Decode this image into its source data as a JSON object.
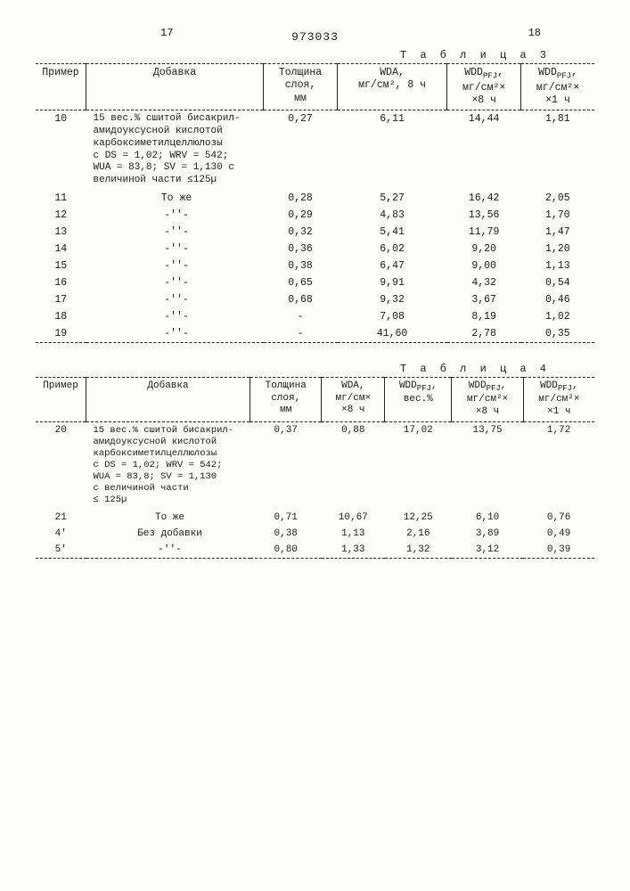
{
  "header": {
    "left_page": "17",
    "right_page": "18",
    "doc_number": "973033"
  },
  "table3": {
    "label": "Т а б л и ц а  3",
    "columns": {
      "c1": "Пример",
      "c2": "Добавка",
      "c3": "Толщина\nслоя,\nмм",
      "c4_a": "WDA,",
      "c4_b": "мг/см², 8 ч",
      "c5_a": "WDD",
      "c5_sub": "PFJ",
      "c5_b": "мг/см²×\n×8 ч",
      "c6_a": "WDD",
      "c6_sub": "PFJ",
      "c6_b": "мг/см²×\n×1 ч"
    },
    "additive_full": "15 вес.% сшитой бисакрил-\nамидоуксусной кислотой\nкарбоксиметилцеллюлозы\nс DS = 1,02; WRV = 542;\nWUA = 83,8; SV = 1,130 с\nвеличиной части ≤125µ",
    "same": "То же",
    "ditto": "-''-",
    "rows": [
      {
        "ex": "10",
        "add": "full",
        "t": "0,27",
        "wda": "6,11",
        "wdd8": "14,44",
        "wdd1": "1,81"
      },
      {
        "ex": "11",
        "add": "same",
        "t": "0,28",
        "wda": "5,27",
        "wdd8": "16,42",
        "wdd1": "2,05"
      },
      {
        "ex": "12",
        "add": "ditto",
        "t": "0,29",
        "wda": "4,83",
        "wdd8": "13,56",
        "wdd1": "1,70"
      },
      {
        "ex": "13",
        "add": "ditto",
        "t": "0,32",
        "wda": "5,41",
        "wdd8": "11,79",
        "wdd1": "1,47"
      },
      {
        "ex": "14",
        "add": "ditto",
        "t": "0,36",
        "wda": "6,02",
        "wdd8": "9,20",
        "wdd1": "1,20"
      },
      {
        "ex": "15",
        "add": "ditto",
        "t": "0,38",
        "wda": "6,47",
        "wdd8": "9,00",
        "wdd1": "1,13"
      },
      {
        "ex": "16",
        "add": "ditto",
        "t": "0,65",
        "wda": "9,91",
        "wdd8": "4,32",
        "wdd1": "0,54"
      },
      {
        "ex": "17",
        "add": "ditto",
        "t": "0,68",
        "wda": "9,32",
        "wdd8": "3,67",
        "wdd1": "0,46"
      },
      {
        "ex": "18",
        "add": "ditto",
        "t": "-",
        "wda": "7,08",
        "wdd8": "8,19",
        "wdd1": "1,02"
      },
      {
        "ex": "19",
        "add": "ditto",
        "t": "-",
        "wda": "41,60",
        "wdd8": "2,78",
        "wdd1": "0,35"
      }
    ]
  },
  "table4": {
    "label": "Т а б л и ц а  4",
    "columns": {
      "c1": "Пример",
      "c2": "Добавка",
      "c3": "Толщина\nслоя,\nмм",
      "c4_a": "WDA,",
      "c4_b": "мг/см×\n×8 ч",
      "c5_a": "WDD",
      "c5_sub": "PFJ",
      "c5_b": "вес.%",
      "c6_a": "WDD",
      "c6_sub": "PFJ",
      "c6_b": "мг/см²×\n×8 ч",
      "c7_a": "WDD",
      "c7_sub": "PFJ",
      "c7_b": "мг/см²×\n×1 ч"
    },
    "additive_full": "15 вес.% сшитой бисакрил-\nамидоуксусной кислотой\nкарбоксиметилцеллюлозы\nс DS = 1,02; WRV = 542;\nWUA = 83,8; SV = 1,130\nс величиной части\n≤ 125µ",
    "same": "То же",
    "none": "Без добавки",
    "ditto": "-''-",
    "rows": [
      {
        "ex": "20",
        "add": "full",
        "t": "0,37",
        "wda": "0,88",
        "wddp": "17,02",
        "wdd8": "13,75",
        "wdd1": "1,72"
      },
      {
        "ex": "21",
        "add": "same",
        "t": "0,71",
        "wda": "10,67",
        "wddp": "12,25",
        "wdd8": "6,10",
        "wdd1": "0,76"
      },
      {
        "ex": "4'",
        "add": "none",
        "t": "0,38",
        "wda": "1,13",
        "wddp": "2,16",
        "wdd8": "3,89",
        "wdd1": "0,49"
      },
      {
        "ex": "5'",
        "add": "ditto",
        "t": "0,80",
        "wda": "1,33",
        "wddp": "1,32",
        "wdd8": "3,12",
        "wdd1": "0,39"
      }
    ]
  }
}
